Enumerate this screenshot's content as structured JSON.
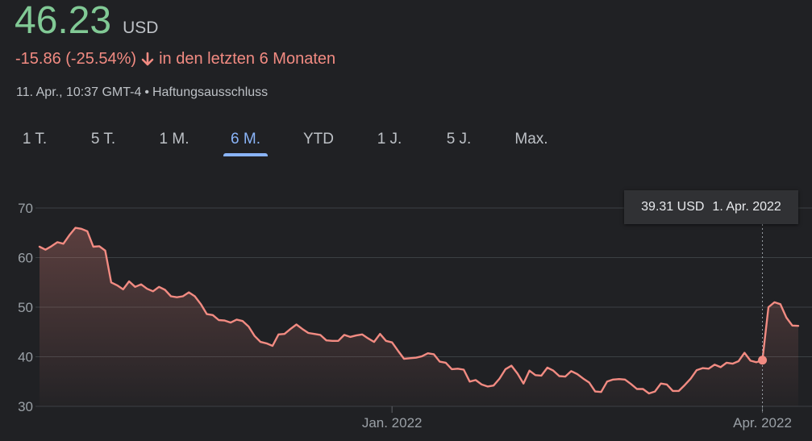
{
  "header": {
    "price": "46.23",
    "currency": "USD",
    "change": "-15.86 (-25.54%)",
    "change_period": "in den letzten 6 Monaten",
    "timestamp": "11. Apr., 10:37 GMT-4",
    "disclaimer": "Haftungsausschluss"
  },
  "tabs": [
    {
      "label": "1 T.",
      "active": false
    },
    {
      "label": "5 T.",
      "active": false
    },
    {
      "label": "1 M.",
      "active": false
    },
    {
      "label": "6 M.",
      "active": true
    },
    {
      "label": "YTD",
      "active": false
    },
    {
      "label": "1 J.",
      "active": false
    },
    {
      "label": "5 J.",
      "active": false
    },
    {
      "label": "Max.",
      "active": false
    }
  ],
  "tooltip": {
    "value": "39.31 USD",
    "date": "1. Apr. 2022"
  },
  "colors": {
    "positive": "#81c995",
    "negative": "#f28b82",
    "accent": "#8ab4f8",
    "line": "#f28b82"
  },
  "chart_data": {
    "type": "area",
    "title": "",
    "xlabel": "",
    "ylabel": "",
    "ylim": [
      30,
      70
    ],
    "yticks": [
      30,
      40,
      50,
      60,
      70
    ],
    "xticks": [
      {
        "label": "Jan. 2022",
        "index": 59
      },
      {
        "label": "Apr. 2022",
        "index": 121
      }
    ],
    "grid": true,
    "highlight": {
      "index": 121,
      "value": 39.31
    },
    "series": [
      {
        "values": [
          62.2,
          61.6,
          62.3,
          63.1,
          62.8,
          64.5,
          66.0,
          65.8,
          65.3,
          62.2,
          62.3,
          61.4,
          55.0,
          54.4,
          53.6,
          55.2,
          54.1,
          54.6,
          53.7,
          53.2,
          54.1,
          53.5,
          52.2,
          52.0,
          52.2,
          53.0,
          52.2,
          50.6,
          48.6,
          48.4,
          47.4,
          47.3,
          46.9,
          47.5,
          47.2,
          46.1,
          44.2,
          43.0,
          42.7,
          42.2,
          44.5,
          44.6,
          45.6,
          46.5,
          45.6,
          44.8,
          44.6,
          44.4,
          43.3,
          43.2,
          43.2,
          44.4,
          44.0,
          44.3,
          44.5,
          43.7,
          43.0,
          44.6,
          43.2,
          42.9,
          41.2,
          39.6,
          39.7,
          39.8,
          40.1,
          40.7,
          40.5,
          39.0,
          38.8,
          37.5,
          37.6,
          37.4,
          35.0,
          35.3,
          34.4,
          34.0,
          34.2,
          35.6,
          37.5,
          38.2,
          36.6,
          34.6,
          37.2,
          36.3,
          36.2,
          37.8,
          37.2,
          36.1,
          36.0,
          37.1,
          36.5,
          35.6,
          34.8,
          33.0,
          32.9,
          35.0,
          35.4,
          35.5,
          35.4,
          34.5,
          33.5,
          33.5,
          32.6,
          33.0,
          34.6,
          34.4,
          33.1,
          33.1,
          34.3,
          35.6,
          37.3,
          37.7,
          37.6,
          38.4,
          37.9,
          38.8,
          38.6,
          39.1,
          40.8,
          39.2,
          38.9,
          39.31,
          50.0,
          51.0,
          50.6,
          47.9,
          46.3,
          46.23
        ]
      }
    ]
  }
}
